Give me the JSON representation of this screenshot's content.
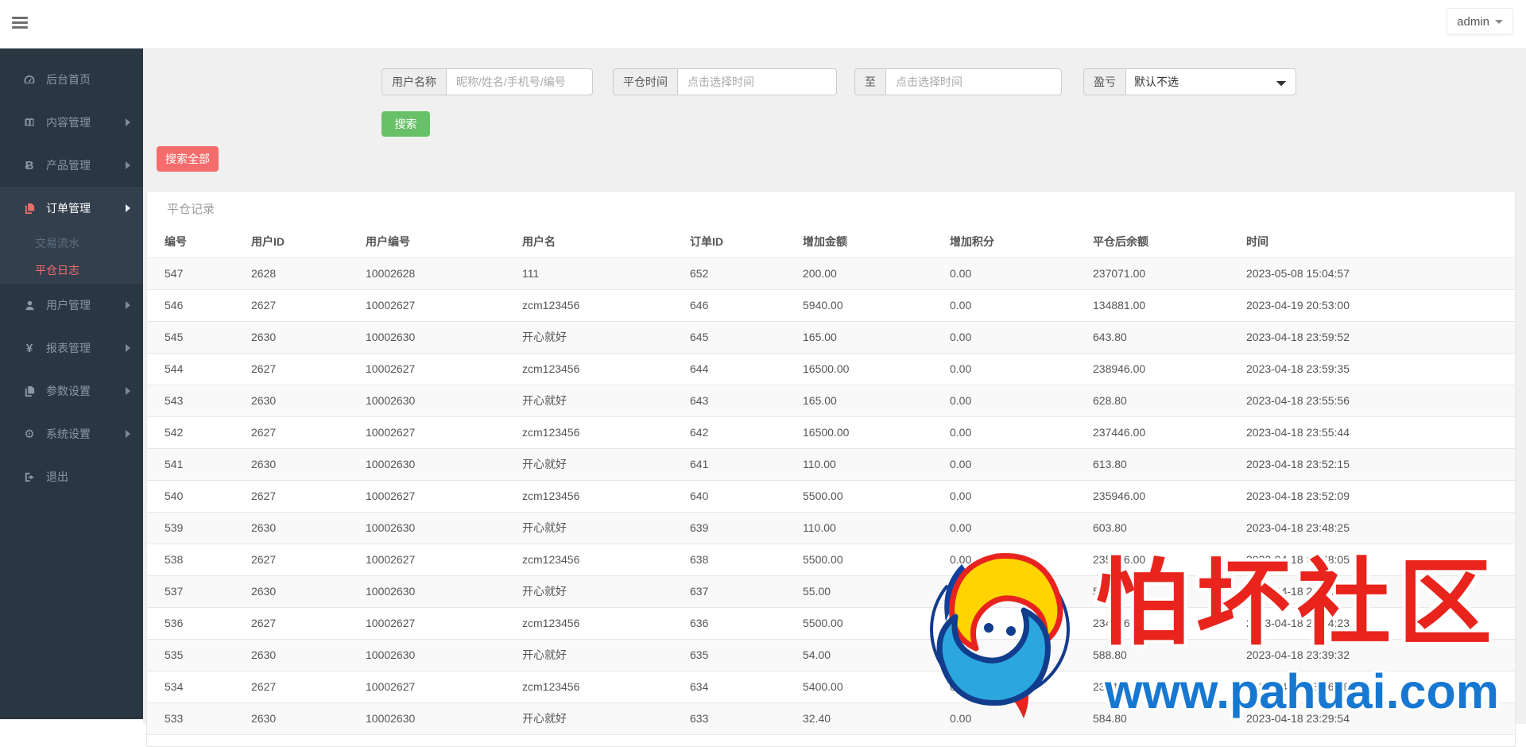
{
  "topbar": {
    "user_menu_label": "admin"
  },
  "sidebar": {
    "items": [
      {
        "label": "后台首页",
        "icon": "dashboard-icon"
      },
      {
        "label": "内容管理",
        "icon": "book-icon"
      },
      {
        "label": "产品管理",
        "icon": "bitcoin-icon"
      },
      {
        "label": "订单管理",
        "icon": "orders-copy-icon"
      },
      {
        "label": "用户管理",
        "icon": "user-icon"
      },
      {
        "label": "报表管理",
        "icon": "yen-icon"
      },
      {
        "label": "参数设置",
        "icon": "params-copy-icon"
      },
      {
        "label": "系统设置",
        "icon": "gear-icon"
      },
      {
        "label": "退出",
        "icon": "signout-icon"
      }
    ],
    "submenu": [
      {
        "label": "交易流水",
        "active": false
      },
      {
        "label": "平仓日志",
        "active": true
      }
    ]
  },
  "search_form": {
    "username_label": "用户名称",
    "username_placeholder": "昵称/姓名/手机号/编号",
    "time_label": "平仓时间",
    "time_from_placeholder": "点击选择时间",
    "to_label": "至",
    "time_to_placeholder": "点击选择时间",
    "profit_label": "盈亏",
    "profit_selected": "默认不选",
    "search_button": "搜索",
    "search_all_button": "搜索全部"
  },
  "panel": {
    "title": "平仓记录",
    "table": {
      "headers": [
        "编号",
        "用户ID",
        "用户编号",
        "用户名",
        "订单ID",
        "增加金额",
        "增加积分",
        "平仓后余额",
        "时间"
      ],
      "rows": [
        [
          "547",
          "2628",
          "10002628",
          "111",
          "652",
          "200.00",
          "0.00",
          "237071.00",
          "2023-05-08 15:04:57"
        ],
        [
          "546",
          "2627",
          "10002627",
          "zcm123456",
          "646",
          "5940.00",
          "0.00",
          "134881.00",
          "2023-04-19 20:53:00"
        ],
        [
          "545",
          "2630",
          "10002630",
          "开心就好",
          "645",
          "165.00",
          "0.00",
          "643.80",
          "2023-04-18 23:59:52"
        ],
        [
          "544",
          "2627",
          "10002627",
          "zcm123456",
          "644",
          "16500.00",
          "0.00",
          "238946.00",
          "2023-04-18 23:59:35"
        ],
        [
          "543",
          "2630",
          "10002630",
          "开心就好",
          "643",
          "165.00",
          "0.00",
          "628.80",
          "2023-04-18 23:55:56"
        ],
        [
          "542",
          "2627",
          "10002627",
          "zcm123456",
          "642",
          "16500.00",
          "0.00",
          "237446.00",
          "2023-04-18 23:55:44"
        ],
        [
          "541",
          "2630",
          "10002630",
          "开心就好",
          "641",
          "110.00",
          "0.00",
          "613.80",
          "2023-04-18 23:52:15"
        ],
        [
          "540",
          "2627",
          "10002627",
          "zcm123456",
          "640",
          "5500.00",
          "0.00",
          "235946.00",
          "2023-04-18 23:52:09"
        ],
        [
          "539",
          "2630",
          "10002630",
          "开心就好",
          "639",
          "110.00",
          "0.00",
          "603.80",
          "2023-04-18 23:48:25"
        ],
        [
          "538",
          "2627",
          "10002627",
          "zcm123456",
          "638",
          "5500.00",
          "0.00",
          "235446.00",
          "2023-04-18 23:48:05"
        ],
        [
          "537",
          "2630",
          "10002630",
          "开心就好",
          "637",
          "55.00",
          "0.00",
          "593.80",
          "2023-04-18 23:44:25"
        ],
        [
          "536",
          "2627",
          "10002627",
          "zcm123456",
          "636",
          "5500.00",
          "0.00",
          "234946.00",
          "2023-04-18 23:44:23"
        ],
        [
          "535",
          "2630",
          "10002630",
          "开心就好",
          "635",
          "54.00",
          "0.00",
          "588.80",
          "2023-04-18 23:39:32"
        ],
        [
          "534",
          "2627",
          "10002627",
          "zcm123456",
          "634",
          "5400.00",
          "0.00",
          "234446.00",
          "2023-04-18 23:36:38"
        ],
        [
          "533",
          "2630",
          "10002630",
          "开心就好",
          "633",
          "32.40",
          "0.00",
          "584.80",
          "2023-04-18 23:29:54"
        ]
      ]
    }
  },
  "watermark": {
    "community_text": "怕坏社区",
    "site_url": "www.pahuai.com",
    "red_color": "#e8241d",
    "blue_color": "#1778d2"
  },
  "colors": {
    "sidebar_bg": "#2b3643",
    "sidebar_active_bg": "#333f4d",
    "accent_red": "#f56c6c",
    "accent_green": "#68c168",
    "content_bg": "#f0f0f1",
    "zebra_row": "#f9f9f9"
  }
}
